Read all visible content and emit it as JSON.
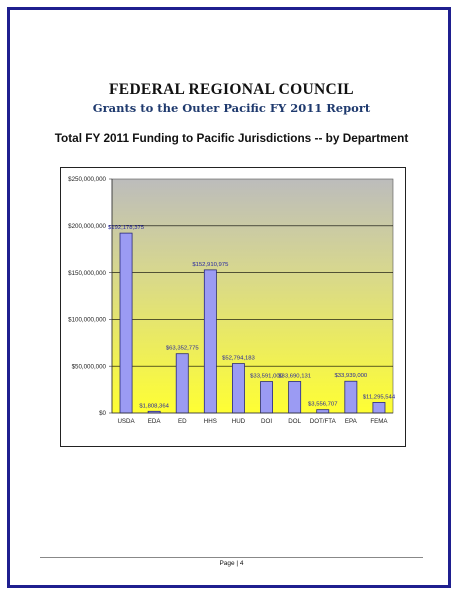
{
  "document": {
    "title": "FEDERAL REGIONAL COUNCIL",
    "subtitle": "Grants to the Outer Pacific FY 2011 Report",
    "page_label": "Page | 4"
  },
  "colors": {
    "bar_fill": "#9b9bf3",
    "bar_stroke": "#2a2a7a",
    "plot_top": "#bcbcbc",
    "plot_bottom": "#ffff33",
    "page_border": "#1f1f8f",
    "axis_text": "#222222",
    "data_label_text": "#1f1f9f"
  },
  "chart_data": {
    "type": "bar",
    "title": "Total FY 2011 Funding to Pacific Jurisdictions -- by Department",
    "xlabel": "",
    "ylabel": "",
    "ylim": [
      0,
      250000000
    ],
    "yticks": [
      0,
      50000000,
      100000000,
      150000000,
      200000000,
      250000000
    ],
    "ytick_labels": [
      "$0",
      "$50,000,000",
      "$100,000,000",
      "$150,000,000",
      "$200,000,000",
      "$250,000,000"
    ],
    "grid": true,
    "legend": "none",
    "categories": [
      "USDA",
      "EDA",
      "ED",
      "HHS",
      "HUD",
      "DOI",
      "DOL",
      "DOT/FTA",
      "EPA",
      "FEMA"
    ],
    "values": [
      192178375,
      1808364,
      63352775,
      152910975,
      52794183,
      33591000,
      33690131,
      3556707,
      33939000,
      11295544
    ],
    "value_labels": [
      "$192,178,375",
      "$1,808,364",
      "$63,352,775",
      "$152,910,975",
      "$52,794,183",
      "$33,591,000",
      "$33,690,131",
      "$3,556,707",
      "$33,939,000",
      "$11,295,544"
    ]
  }
}
